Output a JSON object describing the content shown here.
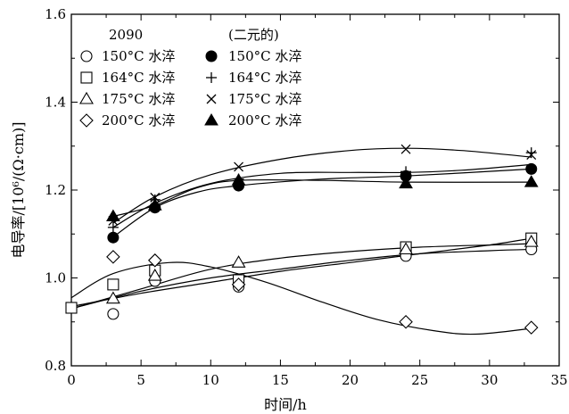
{
  "chart_data": {
    "type": "scatter",
    "xlabel": "时间/h",
    "ylabel": "电导率/[10⁶/(Ω·cm)]",
    "xlim": [
      0,
      35
    ],
    "ylim": [
      0.8,
      1.6
    ],
    "xticks": [
      "0",
      "5",
      "10",
      "15",
      "20",
      "25",
      "30",
      "35"
    ],
    "yticks": [
      "0.8",
      "1.0",
      "1.2",
      "1.4",
      "1.6"
    ],
    "grid": false,
    "legend_position": "top-left",
    "legend_headers": {
      "left": "2090",
      "right": "(二元的)"
    },
    "series": [
      {
        "name": "150°C 水淬",
        "marker": "circle-open",
        "group": "2090",
        "x": [
          3,
          6,
          12,
          24,
          33
        ],
        "y": [
          0.918,
          0.993,
          0.98,
          1.05,
          1.065
        ],
        "curve": [
          [
            0,
            0.93
          ],
          [
            5,
            0.97
          ],
          [
            10,
            1.0
          ],
          [
            15,
            1.02
          ],
          [
            20,
            1.04
          ],
          [
            25,
            1.055
          ],
          [
            30,
            1.062
          ],
          [
            33,
            1.065
          ]
        ]
      },
      {
        "name": "164°C 水淬",
        "marker": "square-open",
        "group": "2090",
        "x": [
          0,
          3,
          6,
          12,
          24,
          33
        ],
        "y": [
          0.932,
          0.985,
          1.017,
          0.995,
          1.07,
          1.09
        ],
        "curve": [
          [
            0,
            0.93
          ],
          [
            5,
            0.975
          ],
          [
            10,
            1.02
          ],
          [
            15,
            1.045
          ],
          [
            20,
            1.06
          ],
          [
            25,
            1.07
          ],
          [
            30,
            1.075
          ],
          [
            33,
            1.078
          ]
        ]
      },
      {
        "name": "175°C 水淬",
        "marker": "triangle-open",
        "group": "2090",
        "x": [
          3,
          6,
          12,
          24,
          33
        ],
        "y": [
          0.953,
          1.005,
          1.035,
          1.065,
          1.082
        ],
        "curve": [
          [
            0,
            0.935
          ],
          [
            5,
            0.965
          ],
          [
            10,
            0.99
          ],
          [
            15,
            1.015
          ],
          [
            20,
            1.035
          ],
          [
            25,
            1.055
          ],
          [
            30,
            1.075
          ],
          [
            33,
            1.09
          ]
        ]
      },
      {
        "name": "200°C 水淬",
        "marker": "diamond-open",
        "group": "2090",
        "x": [
          3,
          6,
          12,
          24,
          33
        ],
        "y": [
          1.048,
          1.04,
          0.985,
          0.9,
          0.887
        ],
        "curve": [
          [
            0,
            0.955
          ],
          [
            3,
            1.01
          ],
          [
            7,
            1.035
          ],
          [
            10,
            1.025
          ],
          [
            14,
            0.99
          ],
          [
            18,
            0.945
          ],
          [
            22,
            0.905
          ],
          [
            26,
            0.88
          ],
          [
            29,
            0.872
          ],
          [
            33,
            0.885
          ]
        ]
      },
      {
        "name": "150°C 水淬",
        "marker": "circle-filled",
        "group": "二元的",
        "x": [
          3,
          6,
          12,
          24,
          33
        ],
        "y": [
          1.092,
          1.16,
          1.21,
          1.232,
          1.248
        ],
        "curve": [
          [
            3,
            1.093
          ],
          [
            6,
            1.16
          ],
          [
            9,
            1.195
          ],
          [
            12,
            1.21
          ],
          [
            18,
            1.225
          ],
          [
            24,
            1.232
          ],
          [
            33,
            1.248
          ]
        ]
      },
      {
        "name": "164°C 水淬",
        "marker": "plus",
        "group": "二元的",
        "x": [
          3,
          6,
          12,
          24,
          33
        ],
        "y": [
          1.115,
          1.178,
          1.225,
          1.242,
          1.285
        ],
        "curve": [
          [
            3,
            1.115
          ],
          [
            6,
            1.17
          ],
          [
            10,
            1.215
          ],
          [
            15,
            1.238
          ],
          [
            20,
            1.24
          ],
          [
            24,
            1.24
          ],
          [
            28,
            1.245
          ],
          [
            33,
            1.258
          ]
        ]
      },
      {
        "name": "175°C 水淬",
        "marker": "cross",
        "group": "二元的",
        "x": [
          3,
          6,
          12,
          24,
          33
        ],
        "y": [
          1.13,
          1.183,
          1.253,
          1.293,
          1.28
        ],
        "curve": [
          [
            3,
            1.125
          ],
          [
            6,
            1.185
          ],
          [
            10,
            1.235
          ],
          [
            15,
            1.27
          ],
          [
            20,
            1.29
          ],
          [
            24,
            1.295
          ],
          [
            28,
            1.29
          ],
          [
            33,
            1.275
          ]
        ]
      },
      {
        "name": "200°C 水淬",
        "marker": "triangle-filled",
        "group": "二元的",
        "x": [
          3,
          6,
          12,
          24,
          33
        ],
        "y": [
          1.14,
          1.165,
          1.222,
          1.215,
          1.218
        ],
        "curve": [
          [
            3,
            1.14
          ],
          [
            6,
            1.165
          ],
          [
            9,
            1.205
          ],
          [
            12,
            1.222
          ],
          [
            18,
            1.222
          ],
          [
            24,
            1.218
          ],
          [
            33,
            1.218
          ]
        ]
      }
    ]
  }
}
